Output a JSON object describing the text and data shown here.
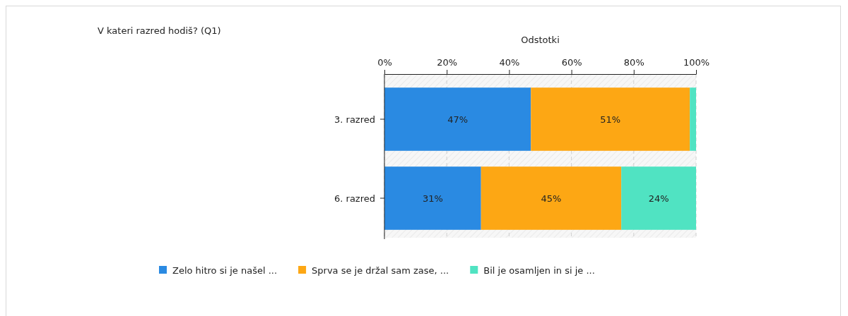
{
  "chart_data": {
    "type": "bar",
    "orientation": "horizontal",
    "stacked": true,
    "title": "V kateri razred hodiš? (Q1)",
    "xlabel": "Odstotki",
    "categories": [
      "3. razred",
      "6. razred"
    ],
    "series": [
      {
        "name": "Zelo hitro si je našel ...",
        "color": "#2a8ae2",
        "values": [
          47,
          31
        ],
        "value_labels": [
          "47%",
          "31%"
        ]
      },
      {
        "name": "Sprva se je držal sam zase, ...",
        "color": "#fda714",
        "values": [
          51,
          45
        ],
        "value_labels": [
          "51%",
          "45%"
        ]
      },
      {
        "name": "Bil je osamljen in si je ...",
        "color": "#50e3c2",
        "values": [
          2,
          24
        ],
        "value_labels": [
          null,
          "24%"
        ]
      }
    ],
    "xlim": [
      0,
      100
    ],
    "xticks": [
      {
        "value": 0,
        "label": "0%"
      },
      {
        "value": 20,
        "label": "20%"
      },
      {
        "value": 40,
        "label": "40%"
      },
      {
        "value": 60,
        "label": "60%"
      },
      {
        "value": 80,
        "label": "80%"
      },
      {
        "value": 100,
        "label": "100%"
      }
    ],
    "grid": "x",
    "legend": "bottom"
  }
}
